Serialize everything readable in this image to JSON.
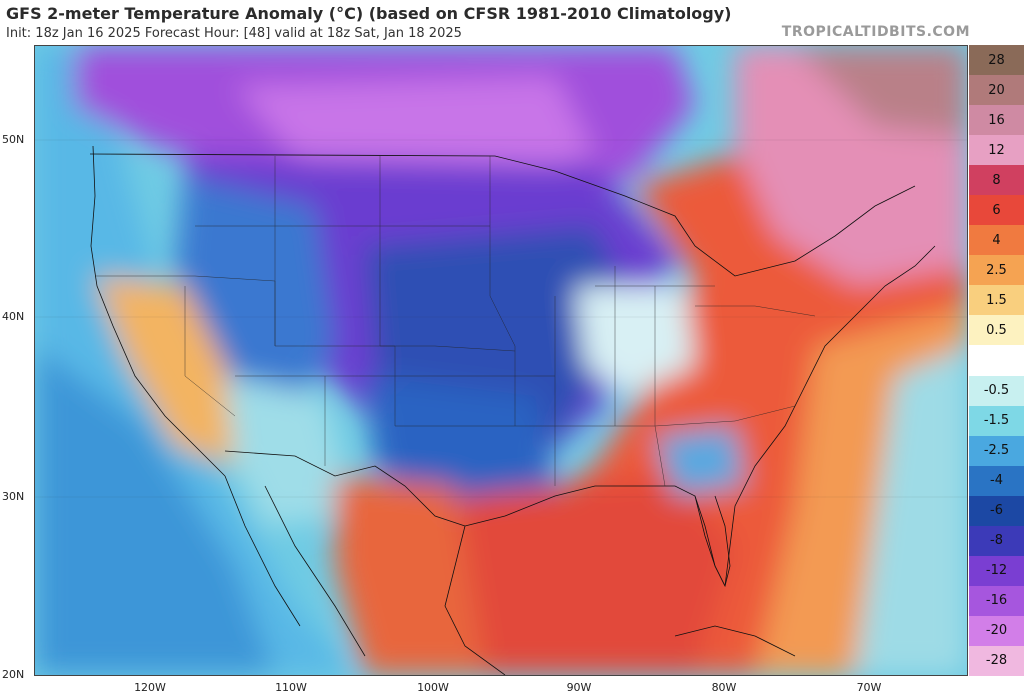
{
  "header": {
    "title": "GFS 2-meter Temperature Anomaly (°C) (based on CFSR 1981-2010 Climatology)",
    "subtitle": "Init: 18z Jan 16 2025   Forecast Hour: [48]   valid at 18z Sat, Jan 18 2025",
    "brand": "TROPICALTIDBITS.COM"
  },
  "map": {
    "lat_labels": [
      "50N",
      "40N",
      "30N",
      "20N"
    ],
    "lon_labels": [
      "120W",
      "110W",
      "100W",
      "90W",
      "80W",
      "70W"
    ]
  },
  "colorbar": {
    "levels": [
      {
        "label": "28",
        "color": "#8a6a58"
      },
      {
        "label": "20",
        "color": "#b07a7a"
      },
      {
        "label": "16",
        "color": "#cf8aa3"
      },
      {
        "label": "12",
        "color": "#e7a0c3"
      },
      {
        "label": "8",
        "color": "#d04060"
      },
      {
        "label": "6",
        "color": "#e8483a"
      },
      {
        "label": "4",
        "color": "#f07a40"
      },
      {
        "label": "2.5",
        "color": "#f5a352"
      },
      {
        "label": "1.5",
        "color": "#f9cf7e"
      },
      {
        "label": "0.5",
        "color": "#fdf2c0"
      },
      {
        "label": "",
        "color": "#ffffff"
      },
      {
        "label": "-0.5",
        "color": "#c8f0f0"
      },
      {
        "label": "-1.5",
        "color": "#7ed8e6"
      },
      {
        "label": "-2.5",
        "color": "#4aa8e0"
      },
      {
        "label": "-4",
        "color": "#2a74c4"
      },
      {
        "label": "-6",
        "color": "#1c48a4"
      },
      {
        "label": "-8",
        "color": "#3c3ab8"
      },
      {
        "label": "-12",
        "color": "#7a3ed2"
      },
      {
        "label": "-16",
        "color": "#a656de"
      },
      {
        "label": "-20",
        "color": "#d27ee8"
      },
      {
        "label": "-28",
        "color": "#f0b8e0"
      }
    ]
  }
}
